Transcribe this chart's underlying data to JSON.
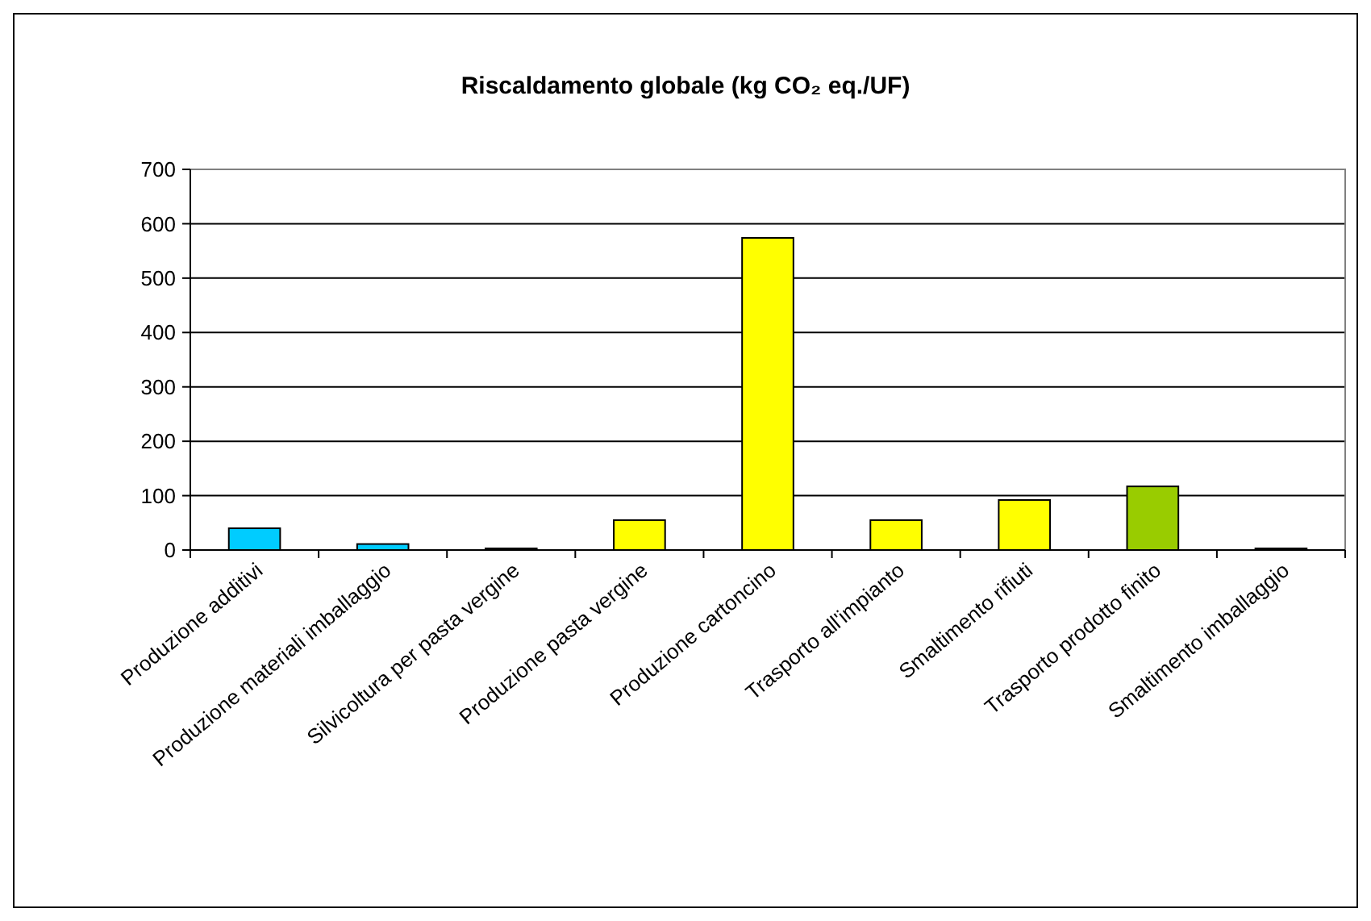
{
  "chart_data": {
    "type": "bar",
    "title": "Riscaldamento globale (kg CO₂ eq./UF)",
    "categories": [
      "Produzione additivi",
      "Produzione materiali imballaggio",
      "Silvicoltura per pasta vergine",
      "Produzione pasta vergine",
      "Produzione cartoncino",
      "Trasporto all'impianto",
      "Smaltimento rifiuti",
      "Trasporto prodotto finito",
      "Smaltimento imballaggio"
    ],
    "values": [
      40,
      11,
      3,
      55,
      574,
      55,
      92,
      117,
      3
    ],
    "colors": [
      "#00ccff",
      "#00ccff",
      "#ffff00",
      "#ffff00",
      "#ffff00",
      "#ffff00",
      "#ffff00",
      "#99cc00",
      "#ffff00"
    ],
    "ylim": [
      0,
      700
    ],
    "yticks": [
      0,
      100,
      200,
      300,
      400,
      500,
      600,
      700
    ],
    "grid": "y"
  }
}
